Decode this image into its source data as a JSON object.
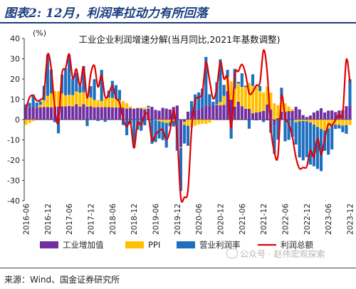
{
  "header": {
    "title": "图表2: 12月，利润率拉动力有所回落"
  },
  "footer": {
    "source": "来源：Wind、国金证券研究所",
    "watermark": "公众号 · 赵伟宏观探索"
  },
  "colors": {
    "industry": "#7030a0",
    "ppi": "#ffc000",
    "margin": "#1f6fbf",
    "total": "#e00000",
    "title": "#1a3d7c"
  },
  "chart_data": {
    "type": "bar",
    "title": "工业企业利润增速分解(当月同比,2021年基数调整)",
    "unit_label": "(%)",
    "ylim": [
      -40,
      40
    ],
    "yticks": [
      40,
      30,
      20,
      10,
      0,
      -10,
      -20,
      -30,
      -40
    ],
    "legend_position": "bottom",
    "x_ticks": [
      "2016-06",
      "2016-12",
      "2017-06",
      "2017-12",
      "2018-06",
      "2018-12",
      "2019-06",
      "2019-12",
      "2020-06",
      "2020-12",
      "2021-06",
      "2021-12",
      "2022-06",
      "2022-12",
      "2023-06",
      "2023-12"
    ],
    "x_tick_index": [
      0,
      6,
      12,
      18,
      24,
      30,
      36,
      42,
      48,
      54,
      60,
      66,
      72,
      78,
      84,
      90
    ],
    "series": [
      {
        "name": "工业增加值",
        "kind": "bar",
        "values": [
          6.2,
          6.0,
          6.3,
          6.1,
          6.1,
          6.2,
          6.2,
          6.0,
          6.3,
          6.4,
          6.5,
          6.5,
          6.7,
          6.5,
          7.6,
          6.4,
          7.6,
          6.4,
          6.6,
          6.0,
          6.2,
          6.1,
          6.2,
          6.2,
          6.0,
          6.0,
          6.0,
          5.8,
          5.4,
          5.6,
          5.4,
          5.7,
          5.5,
          5.0,
          5.4,
          6.3,
          4.8,
          4.4,
          5.8,
          5.4,
          5.0,
          6.2,
          6.9,
          -13.5,
          -1.1,
          3.9,
          4.4,
          4.8,
          4.8,
          5.6,
          6.9,
          6.9,
          7.0,
          7.3,
          7.0,
          7.3,
          14.1,
          9.8,
          6.4,
          8.8,
          6.6,
          5.3,
          5.3,
          3.1,
          3.5,
          3.8,
          4.3,
          7.5,
          5.0,
          -2.9,
          0.7,
          3.9,
          3.8,
          4.2,
          4.2,
          6.3,
          5.0,
          2.2,
          1.3,
          2.0,
          3.5,
          4.4,
          5.6,
          3.5,
          4.4,
          4.5,
          3.7,
          4.5,
          4.6,
          6.6,
          6.8
        ]
      },
      {
        "name": "PPI",
        "kind": "bar",
        "values": [
          -2.6,
          -1.7,
          -0.8,
          0.1,
          1.2,
          3.3,
          5.5,
          6.9,
          7.8,
          7.6,
          6.4,
          5.5,
          5.5,
          5.6,
          6.3,
          6.9,
          5.8,
          4.9,
          4.3,
          3.7,
          3.4,
          3.1,
          4.1,
          4.6,
          4.7,
          4.1,
          3.6,
          3.3,
          2.7,
          0.9,
          0.1,
          0.1,
          0.4,
          0.9,
          0.6,
          0.0,
          -0.3,
          -0.8,
          -1.2,
          -1.6,
          -1.4,
          -0.5,
          0.1,
          -0.4,
          -1.5,
          -3.1,
          -3.7,
          -3.0,
          -2.4,
          -2.0,
          -2.1,
          -1.5,
          -0.4,
          0.3,
          1.7,
          4.4,
          6.8,
          9.0,
          8.8,
          9.0,
          9.5,
          10.7,
          12.9,
          13.5,
          12.9,
          10.3,
          9.1,
          8.8,
          8.3,
          8.0,
          6.4,
          6.1,
          4.2,
          2.3,
          0.9,
          -1.3,
          -0.8,
          -0.7,
          -0.8,
          -1.4,
          -2.5,
          -3.6,
          -4.6,
          -5.4,
          -4.4,
          -3.0,
          -2.5,
          -2.6,
          -3.0,
          -2.7,
          -2.7
        ]
      },
      {
        "name": "营业利润率",
        "kind": "bar",
        "values": [
          1.3,
          2.2,
          6.1,
          2.2,
          1.7,
          7.2,
          20.3,
          11.7,
          -1.3,
          -6.8,
          9.2,
          13.2,
          19.7,
          8.0,
          9.2,
          3.3,
          13.0,
          -3.2,
          5.6,
          10.2,
          -0.7,
          15.3,
          -1.1,
          3.5,
          8.4,
          6.9,
          5.0,
          -2.7,
          -7.7,
          -2.3,
          -13.9,
          -5.0,
          -5.5,
          -2.8,
          0.8,
          -11.9,
          -10.8,
          -8.5,
          -8.9,
          -12.2,
          -1.9,
          -2.9,
          -15.3,
          -21.3,
          -9.2,
          -9.8,
          4.7,
          7.6,
          8.6,
          9.7,
          24.0,
          5.6,
          1.8,
          10.8,
          21.0,
          5.4,
          3.6,
          -9.4,
          9.8,
          0.8,
          6.7,
          0.7,
          -4.5,
          5.7,
          -0.4,
          2.4,
          -1.2,
          -0.4,
          -6.5,
          -14.0,
          -9.9,
          5.7,
          -10.7,
          -10.0,
          -8.5,
          -11.0,
          -17.8,
          -19.4,
          -17.7,
          -20.8,
          -20.5,
          -20.7,
          -20.8,
          -10.0,
          -12.9,
          -11.7,
          -2.1,
          -1.8,
          -3.2,
          -4.3,
          13.1
        ]
      },
      {
        "name": "利润总额",
        "kind": "line",
        "values": [
          5.1,
          11.0,
          11.8,
          9.3,
          9.8,
          12.8,
          32.0,
          25.3,
          5.5,
          -1.3,
          22.6,
          25.3,
          32.3,
          20.3,
          24.9,
          16.7,
          25.8,
          10.7,
          22.6,
          26.6,
          16.1,
          21.9,
          11.1,
          12.8,
          16.6,
          10.8,
          8.3,
          0.2,
          -3.4,
          -1.2,
          -14.0,
          -1.7,
          -2.8,
          2.6,
          1.6,
          -10.3,
          -7.3,
          -5.6,
          -5.0,
          -9.9,
          -5.5,
          4.6,
          -8.3,
          -38.3,
          -38.3,
          -34.9,
          -5.0,
          9.2,
          11.0,
          13.3,
          28.2,
          19.3,
          10.3,
          15.4,
          28.6,
          20.1,
          20.1,
          -4.1,
          21.9,
          23.8,
          27.2,
          22.5,
          13.0,
          13.7,
          16.9,
          18.2,
          34.2,
          23.7,
          -3.6,
          -16.0,
          -17.9,
          11.6,
          0.9,
          -2.1,
          -8.4,
          -18.7,
          -24.1,
          -23.6,
          -23.2,
          -15.2,
          -18.5,
          -9.3,
          -17.2,
          -9.4,
          -2.3,
          -3.0,
          -0.1,
          2.7,
          2.9,
          29.5,
          18.4
        ]
      }
    ]
  }
}
